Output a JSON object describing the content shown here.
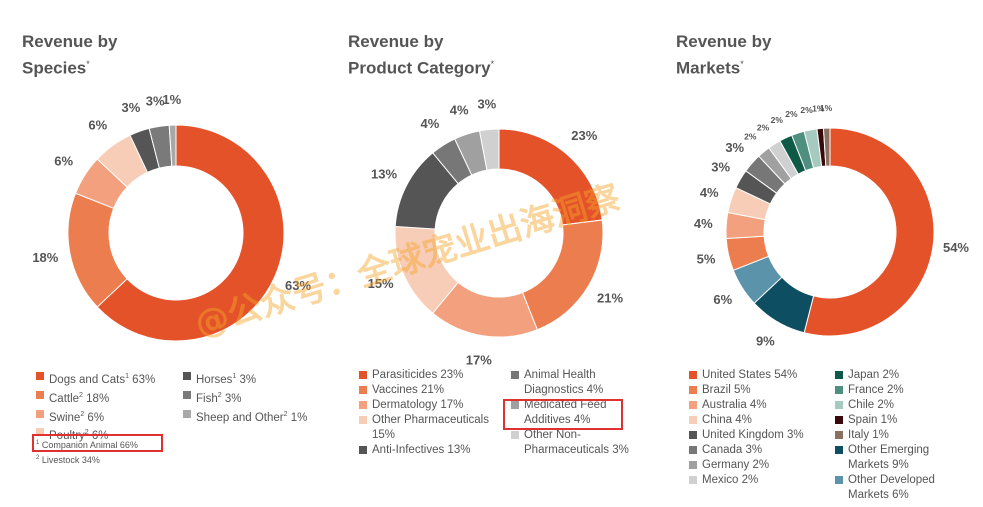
{
  "charts": [
    {
      "title_line1": "Revenue by",
      "title_line2": "Species",
      "title_mark": "*",
      "legend_left": [
        {
          "label": "Dogs and Cats",
          "sup": "1",
          "pct": " 63%",
          "color": "#e4522a"
        },
        {
          "label": "Cattle",
          "sup": "2",
          "pct": " 18%",
          "color": "#ec7d4e"
        },
        {
          "label": "Swine",
          "sup": "2",
          "pct": " 6%",
          "color": "#f2a07d"
        },
        {
          "label": "Poultry",
          "sup": "2",
          "pct": " 6%",
          "color": "#f8cdb7"
        }
      ],
      "legend_right": [
        {
          "label": "Horses",
          "sup": "1",
          "pct": " 3%",
          "color": "#555555"
        },
        {
          "label": "Fish",
          "sup": "2",
          "pct": " 3%",
          "color": "#7a7a7a"
        },
        {
          "label": "Sheep and Other",
          "sup": "2",
          "pct": " 1%",
          "color": "#a8a8a8"
        }
      ],
      "notes": [
        {
          "sup": "1",
          "text": " Companion Animal 66%"
        },
        {
          "sup": "2",
          "text": " Livestock 34%"
        }
      ]
    },
    {
      "title_line1": "Revenue by",
      "title_line2": "Product Category",
      "title_mark": "*",
      "legend_left": [
        {
          "label": "Parasiticides 23%",
          "color": "#e4522a"
        },
        {
          "label": "Vaccines 21%",
          "color": "#ec7d4e"
        },
        {
          "label": "Dermatology 17%",
          "color": "#f2a07d"
        },
        {
          "label": "Other Pharmaceuticals",
          "label2": "15%",
          "color": "#f8cdb7"
        },
        {
          "label": "Anti-Infectives 13%",
          "color": "#555555"
        }
      ],
      "legend_right": [
        {
          "label": "Animal Health",
          "label2": "Diagnostics 4%",
          "color": "#777777"
        },
        {
          "label": "Medicated Feed",
          "label2": "Additives 4%",
          "color": "#a0a0a0"
        },
        {
          "label": "Other Non-",
          "label2": "Pharmaceuticals 3%",
          "color": "#d0d0d0"
        }
      ]
    },
    {
      "title_line1": "Revenue by",
      "title_line2": "Markets",
      "title_mark": "*",
      "legend_left": [
        {
          "label": "United States 54%",
          "color": "#e4522a"
        },
        {
          "label": "Brazil 5%",
          "color": "#ec7d4e"
        },
        {
          "label": "Australia 4%",
          "color": "#f2a07d"
        },
        {
          "label": "China 4%",
          "color": "#f8cdb7"
        },
        {
          "label": "United Kingdom 3%",
          "color": "#555555"
        },
        {
          "label": "Canada 3%",
          "color": "#777777"
        },
        {
          "label": "Germany 2%",
          "color": "#a0a0a0"
        },
        {
          "label": "Mexico 2%",
          "color": "#d0d0d0"
        }
      ],
      "legend_right": [
        {
          "label": "Japan 2%",
          "color": "#0e5a47"
        },
        {
          "label": "France 2%",
          "color": "#4f8f80"
        },
        {
          "label": "Chile 2%",
          "color": "#a6c9c0"
        },
        {
          "label": "Spain 1%",
          "color": "#3a0a0a"
        },
        {
          "label": "Italy 1%",
          "color": "#8a7060"
        },
        {
          "label": "Other Emerging",
          "label2": "Markets 9%",
          "color": "#0d4e63"
        },
        {
          "label": "Other Developed",
          "label2": "Markets 6%",
          "color": "#5a93aa"
        }
      ]
    }
  ],
  "watermark": "@公众号：全球宠业出海洞察",
  "chart_data": [
    {
      "type": "pie",
      "title": "Revenue by Species*",
      "categories": [
        "Dogs and Cats",
        "Cattle",
        "Swine",
        "Poultry",
        "Horses",
        "Fish",
        "Sheep and Other"
      ],
      "values": [
        63,
        18,
        6,
        6,
        3,
        3,
        1
      ],
      "data_labels": [
        "63%",
        "18%",
        "6%",
        "6%",
        "3%",
        "3%",
        "1%"
      ],
      "colors": [
        "#e4522a",
        "#ec7d4e",
        "#f2a07d",
        "#f8cdb7",
        "#555555",
        "#7a7a7a",
        "#a8a8a8"
      ]
    },
    {
      "type": "pie",
      "title": "Revenue by Product Category*",
      "categories": [
        "Parasiticides",
        "Vaccines",
        "Dermatology",
        "Other Pharmaceuticals",
        "Anti-Infectives",
        "Animal Health Diagnostics",
        "Medicated Feed Additives",
        "Other Non-Pharmaceuticals"
      ],
      "values": [
        23,
        21,
        17,
        15,
        13,
        4,
        4,
        3
      ],
      "data_labels": [
        "23%",
        "21%",
        "17%",
        "15%",
        "13%",
        "4%",
        "4%",
        "3%"
      ],
      "colors": [
        "#e4522a",
        "#ec7d4e",
        "#f2a07d",
        "#f8cdb7",
        "#555555",
        "#777777",
        "#a0a0a0",
        "#d0d0d0"
      ]
    },
    {
      "type": "pie",
      "title": "Revenue by Markets*",
      "categories": [
        "United States",
        "Other Emerging Markets",
        "Other Developed Markets",
        "Brazil",
        "Australia",
        "China",
        "United Kingdom",
        "Canada",
        "Germany",
        "Mexico",
        "Japan",
        "France",
        "Chile",
        "Spain",
        "Italy"
      ],
      "values": [
        54,
        9,
        6,
        5,
        4,
        4,
        3,
        3,
        2,
        2,
        2,
        2,
        2,
        1,
        1
      ],
      "data_labels": [
        "54%",
        "9%",
        "6%",
        "5%",
        "4%",
        "4%",
        "3%",
        "3%",
        "2%",
        "2%",
        "2%",
        "2%",
        "2%",
        "1%",
        "1%"
      ],
      "colors": [
        "#e4522a",
        "#0d4e63",
        "#5a93aa",
        "#ec7d4e",
        "#f2a07d",
        "#f8cdb7",
        "#555555",
        "#777777",
        "#a0a0a0",
        "#d0d0d0",
        "#0e5a47",
        "#4f8f80",
        "#a6c9c0",
        "#3a0a0a",
        "#8a7060"
      ]
    }
  ]
}
